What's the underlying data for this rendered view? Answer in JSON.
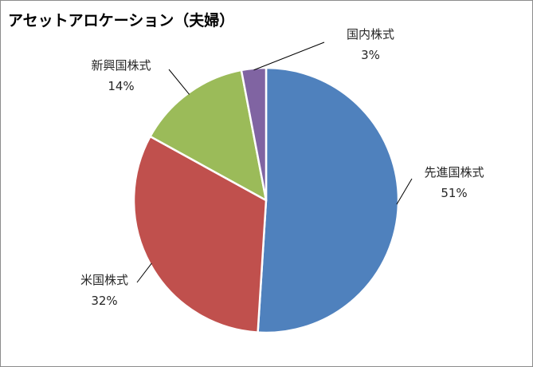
{
  "chart_data": {
    "type": "pie",
    "title": "アセットアロケーション（夫婦）",
    "slices": [
      {
        "label": "先進国株式",
        "value": 51,
        "value_label": "51%",
        "color": "#4f81bd"
      },
      {
        "label": "米国株式",
        "value": 32,
        "value_label": "32%",
        "color": "#c0504d"
      },
      {
        "label": "新興国株式",
        "value": 14,
        "value_label": "14%",
        "color": "#9bbb59"
      },
      {
        "label": "国内株式",
        "value": 3,
        "value_label": "3%",
        "color": "#8064a2"
      }
    ],
    "start": "12 o'clock",
    "direction": "clockwise",
    "legend": "none",
    "data_labels": "outside with leader lines"
  }
}
